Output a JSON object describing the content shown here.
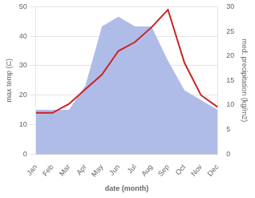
{
  "chart_data": {
    "type": "line",
    "categories": [
      "Jan",
      "Feb",
      "Mar",
      "Apr",
      "May",
      "Jun",
      "Jul",
      "Aug",
      "Sep",
      "Oct",
      "Nov",
      "Dec"
    ],
    "xlabel": "date (month)",
    "ylabel": "max temp (C)",
    "y2label": "med. precipitation (kg/m2)",
    "series": [
      {
        "type": "area",
        "color": "#b0bce8",
        "axis": "y2",
        "values": [
          9,
          9,
          9,
          14,
          26,
          28,
          26,
          26,
          19,
          13,
          11,
          9
        ]
      },
      {
        "type": "line",
        "color": "#cc2222",
        "values": [
          14,
          14,
          17,
          22,
          27,
          35,
          38,
          43,
          49,
          31,
          20,
          16
        ]
      }
    ],
    "ylim": [
      0,
      50
    ],
    "yticks": [
      0,
      10,
      20,
      30,
      40,
      50
    ],
    "y2lim": [
      0,
      30
    ],
    "y2ticks": [
      0,
      5,
      10,
      15,
      20,
      25,
      30
    ],
    "grid": true
  }
}
